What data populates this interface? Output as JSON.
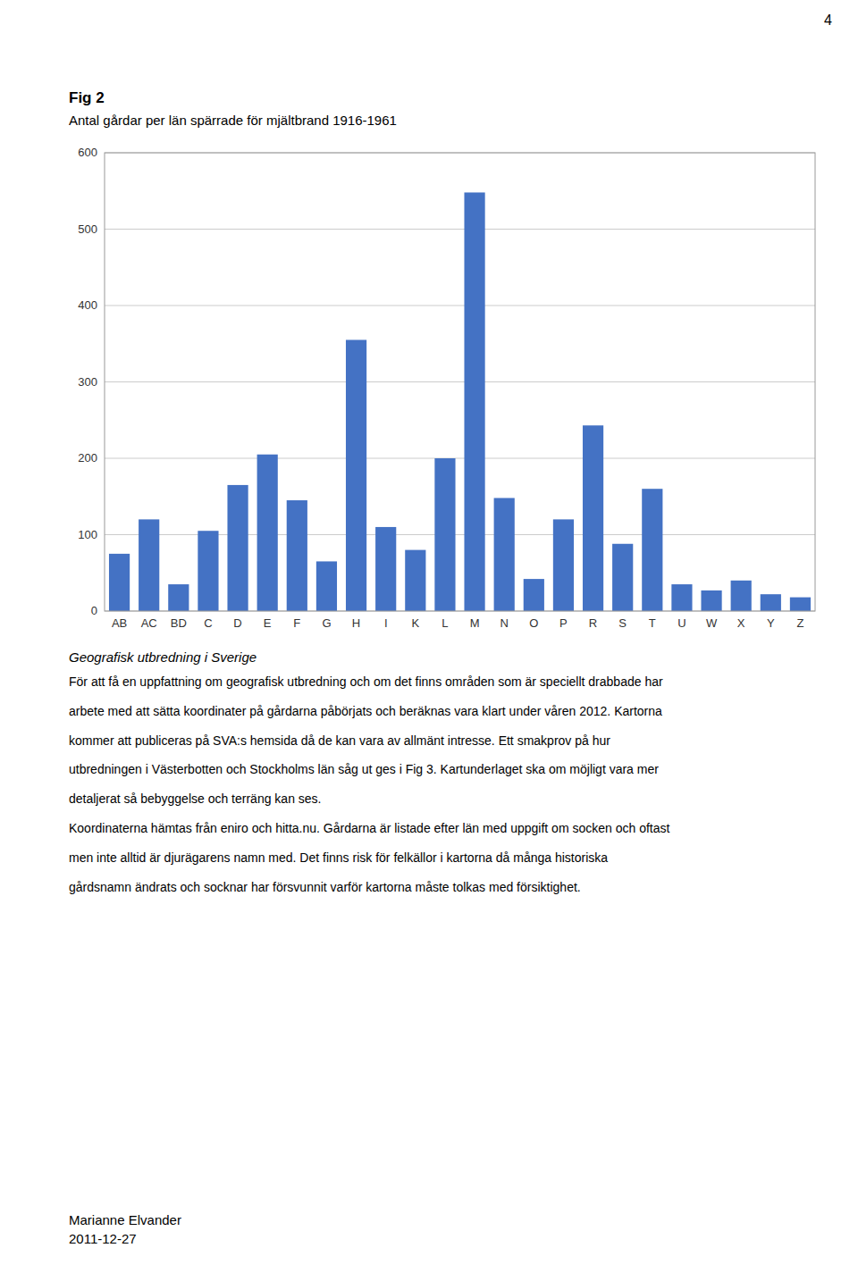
{
  "page_number": "4",
  "chart_data": {
    "type": "bar",
    "title": "Fig 2",
    "subtitle": "Antal gårdar per län spärrade för mjältbrand 1916-1961",
    "categories": [
      "AB",
      "AC",
      "BD",
      "C",
      "D",
      "E",
      "F",
      "G",
      "H",
      "I",
      "K",
      "L",
      "M",
      "N",
      "O",
      "P",
      "R",
      "S",
      "T",
      "U",
      "W",
      "X",
      "Y",
      "Z"
    ],
    "values": [
      75,
      120,
      35,
      105,
      165,
      205,
      145,
      65,
      355,
      110,
      80,
      200,
      548,
      148,
      42,
      120,
      243,
      88,
      160,
      35,
      27,
      40,
      22,
      18
    ],
    "color": "#4472C4",
    "ylim": [
      0,
      600
    ],
    "yticks": [
      0,
      100,
      200,
      300,
      400,
      500,
      600
    ],
    "grid": true
  },
  "body_title": "Geografisk utbredning i Sverige",
  "body_lines": [
    "För att få en uppfattning om geografisk utbredning och om det finns områden som är speciellt drabbade har",
    "arbete med att sätta koordinater på gårdarna påbörjats och beräknas vara klart under våren 2012. Kartorna",
    "kommer att publiceras på SVA:s hemsida då de kan vara av allmänt intresse. Ett smakprov på hur",
    "utbredningen i Västerbotten och Stockholms län såg ut ges i Fig 3.  Kartunderlaget ska om möjligt vara mer",
    "detaljerat så bebyggelse och terräng kan ses.",
    "Koordinaterna hämtas från eniro och hitta.nu. Gårdarna är listade efter län med uppgift om socken och oftast",
    "men inte alltid är djurägarens namn med. Det finns risk för felkällor i kartorna då många historiska",
    "gårdsnamn ändrats och socknar har försvunnit varför kartorna måste tolkas med försiktighet."
  ],
  "footer_name": "Marianne Elvander",
  "footer_date": "2011-12-27"
}
